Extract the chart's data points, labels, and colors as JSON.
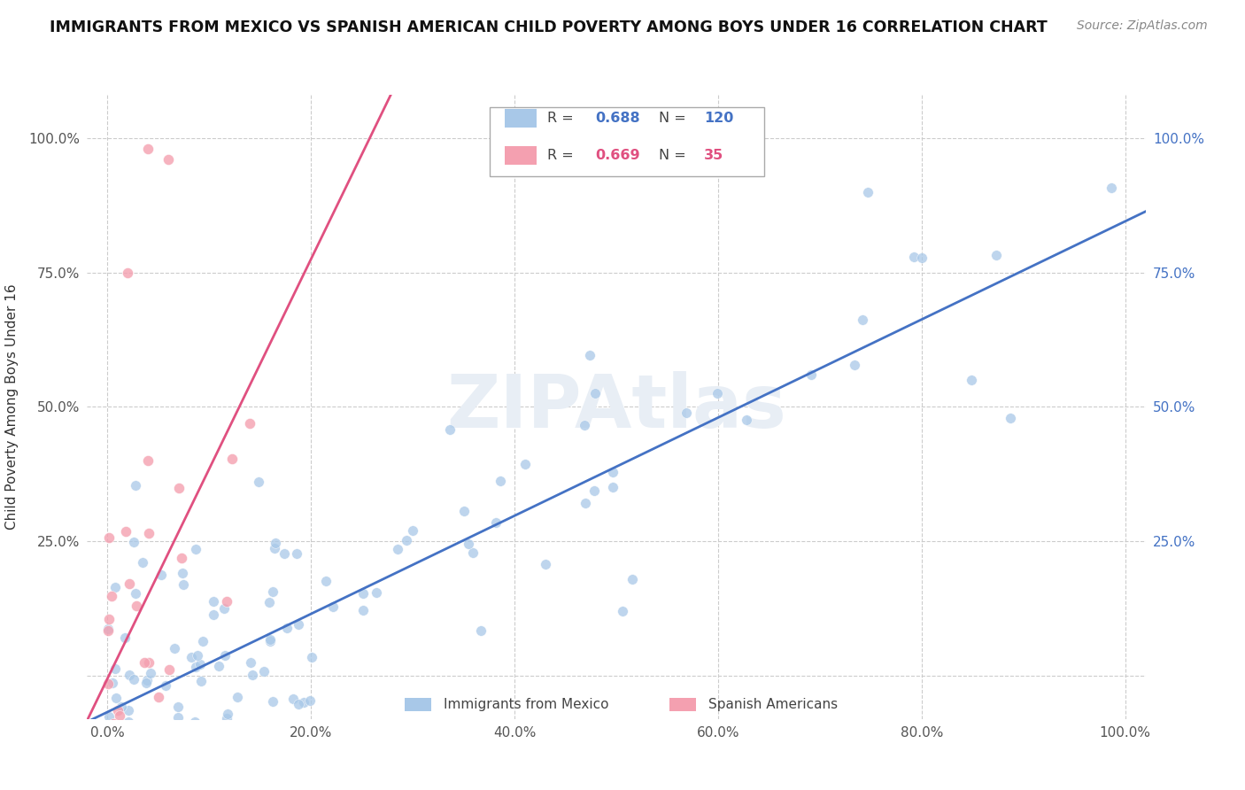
{
  "title": "IMMIGRANTS FROM MEXICO VS SPANISH AMERICAN CHILD POVERTY AMONG BOYS UNDER 16 CORRELATION CHART",
  "source": "Source: ZipAtlas.com",
  "ylabel": "Child Poverty Among Boys Under 16",
  "R_blue": 0.688,
  "N_blue": 120,
  "R_pink": 0.669,
  "N_pink": 35,
  "blue_color": "#a8c8e8",
  "pink_color": "#f4a0b0",
  "blue_line_color": "#4472c4",
  "pink_line_color": "#e05080",
  "right_tick_color": "#4472c4",
  "watermark_color": "#e8eef5",
  "watermark_text": "ZIPAtlas",
  "xlim": [
    -0.02,
    1.02
  ],
  "ylim": [
    -0.08,
    1.08
  ],
  "xtick_positions": [
    0.0,
    0.2,
    0.4,
    0.6,
    0.8,
    1.0
  ],
  "xtick_labels": [
    "0.0%",
    "20.0%",
    "40.0%",
    "60.0%",
    "80.0%",
    "100.0%"
  ],
  "ytick_positions": [
    0.0,
    0.25,
    0.5,
    0.75,
    1.0
  ],
  "ytick_labels": [
    "",
    "25.0%",
    "50.0%",
    "75.0%",
    "100.0%"
  ],
  "blue_seed": 42,
  "pink_seed": 17,
  "legend_blue_label": "Immigrants from Mexico",
  "legend_pink_label": "Spanish Americans"
}
